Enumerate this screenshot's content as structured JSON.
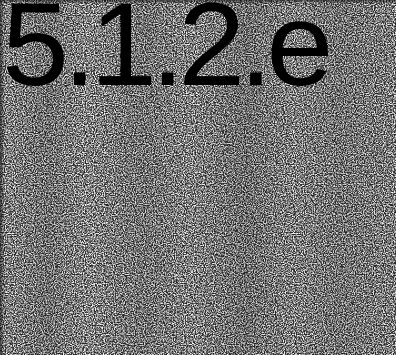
{
  "heading": "5.1.2.e"
}
